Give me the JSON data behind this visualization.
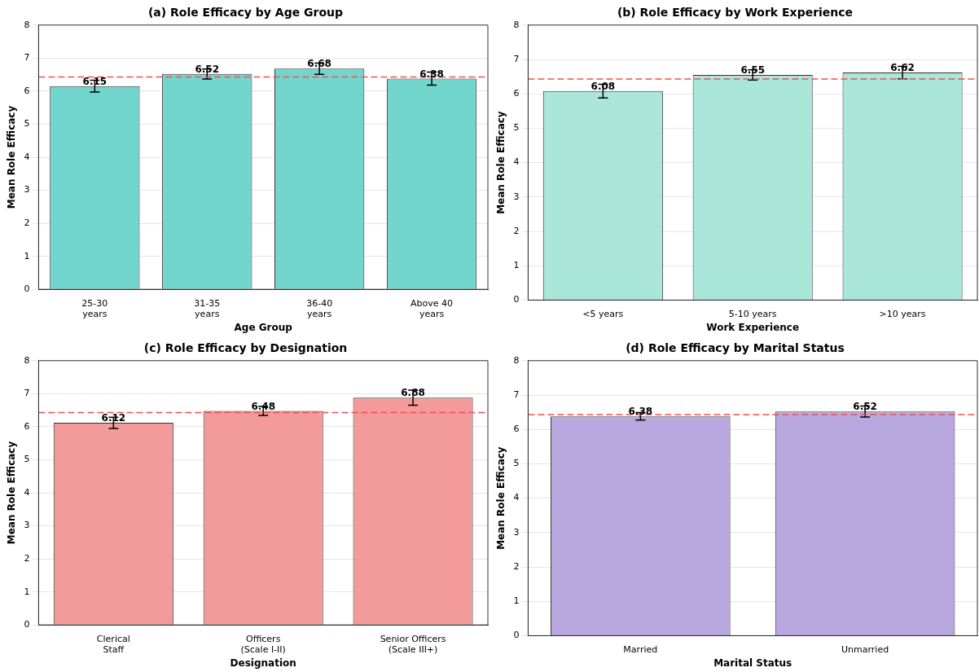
{
  "chart_data": [
    {
      "type": "bar",
      "title": "(a) Role Efficacy by Age Group",
      "xlabel": "Age Group",
      "ylabel": "Mean Role Efficacy",
      "categories": [
        "25-30\nyears",
        "31-35\nyears",
        "36-40\nyears",
        "Above 40\nyears"
      ],
      "values": [
        6.15,
        6.52,
        6.68,
        6.38
      ],
      "errors": [
        0.18,
        0.15,
        0.17,
        0.2
      ],
      "color": "#73d6ce",
      "ylim": [
        0,
        8
      ],
      "yticks": [
        0,
        1,
        2,
        3,
        4,
        5,
        6,
        7,
        8
      ],
      "grid": "y",
      "data_labels": true,
      "ref_lines": [
        {
          "axis": "y",
          "value": 6.43,
          "color": "#f05050",
          "line_style": "dashed"
        }
      ]
    },
    {
      "type": "bar",
      "title": "(b) Role Efficacy by Work Experience",
      "xlabel": "Work Experience",
      "ylabel": "Mean Role Efficacy",
      "categories": [
        "<5 years",
        "5-10 years",
        ">10 years"
      ],
      "values": [
        6.08,
        6.55,
        6.62
      ],
      "errors": [
        0.2,
        0.15,
        0.18
      ],
      "color": "#aae6da",
      "ylim": [
        0,
        8
      ],
      "yticks": [
        0,
        1,
        2,
        3,
        4,
        5,
        6,
        7,
        8
      ],
      "grid": "y",
      "data_labels": true,
      "ref_lines": [
        {
          "axis": "y",
          "value": 6.43,
          "color": "#f05050",
          "line_style": "dashed"
        }
      ]
    },
    {
      "type": "bar",
      "title": "(c) Role Efficacy by Designation",
      "xlabel": "Designation",
      "ylabel": "Mean Role Efficacy",
      "categories": [
        "Clerical\nStaff",
        "Officers\n(Scale I-II)",
        "Senior Officers\n(Scale III+)"
      ],
      "values": [
        6.12,
        6.48,
        6.88
      ],
      "errors": [
        0.17,
        0.14,
        0.23
      ],
      "color": "#f39b9a",
      "ylim": [
        0,
        8
      ],
      "yticks": [
        0,
        1,
        2,
        3,
        4,
        5,
        6,
        7,
        8
      ],
      "grid": "y",
      "data_labels": true,
      "ref_lines": [
        {
          "axis": "y",
          "value": 6.43,
          "color": "#f05050",
          "line_style": "dashed"
        }
      ]
    },
    {
      "type": "bar",
      "title": "(d) Role Efficacy by Marital Status",
      "xlabel": "Marital Status",
      "ylabel": "Mean Role Efficacy",
      "categories": [
        "Married",
        "Unmarried"
      ],
      "values": [
        6.38,
        6.52
      ],
      "errors": [
        0.11,
        0.16
      ],
      "color": "#b9a8e0",
      "ylim": [
        0,
        8
      ],
      "yticks": [
        0,
        1,
        2,
        3,
        4,
        5,
        6,
        7,
        8
      ],
      "grid": "y",
      "data_labels": true,
      "ref_lines": [
        {
          "axis": "y",
          "value": 6.43,
          "color": "#f05050",
          "line_style": "dashed"
        }
      ]
    }
  ]
}
